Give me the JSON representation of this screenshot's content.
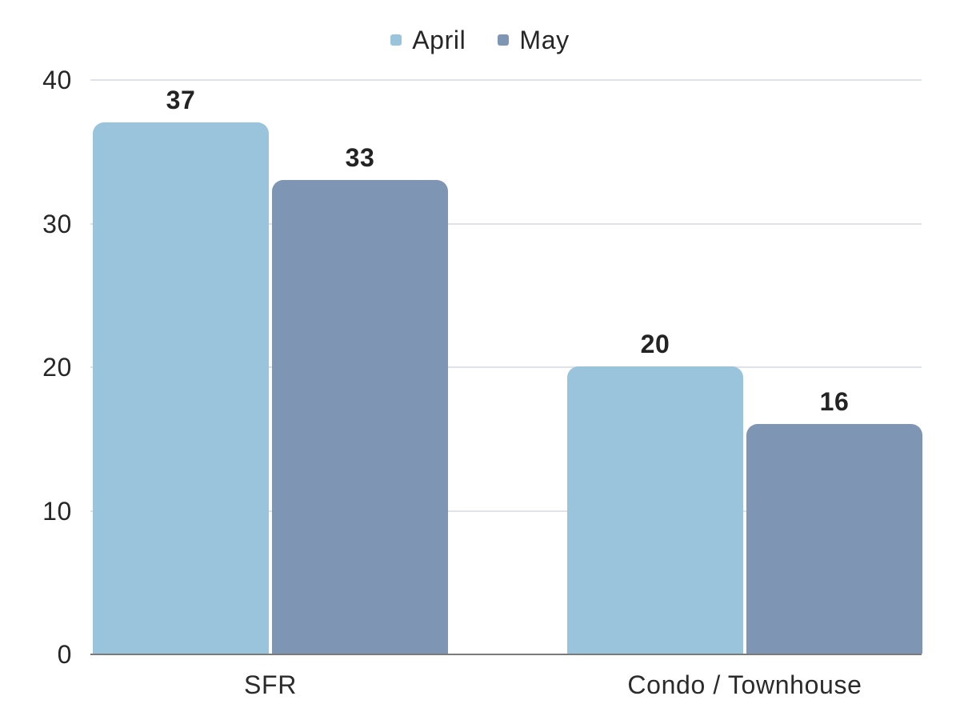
{
  "chart_data": {
    "type": "bar",
    "title": "",
    "categories": [
      "SFR",
      "Condo / Townhouse"
    ],
    "series": [
      {
        "name": "April",
        "color": "#9ac3dc",
        "values": [
          37,
          20
        ]
      },
      {
        "name": "May",
        "color": "#7e96b4",
        "values": [
          33,
          16
        ]
      }
    ],
    "yticks": [
      0,
      10,
      20,
      30,
      40
    ],
    "ylim": [
      0,
      40
    ],
    "grid": true,
    "value_labels": true,
    "legend_position": "top-center",
    "colors": {
      "gridline": "#dfe3e8",
      "axis_line": "#7b7b7b",
      "text": "#262626",
      "background": "#ffffff"
    }
  }
}
